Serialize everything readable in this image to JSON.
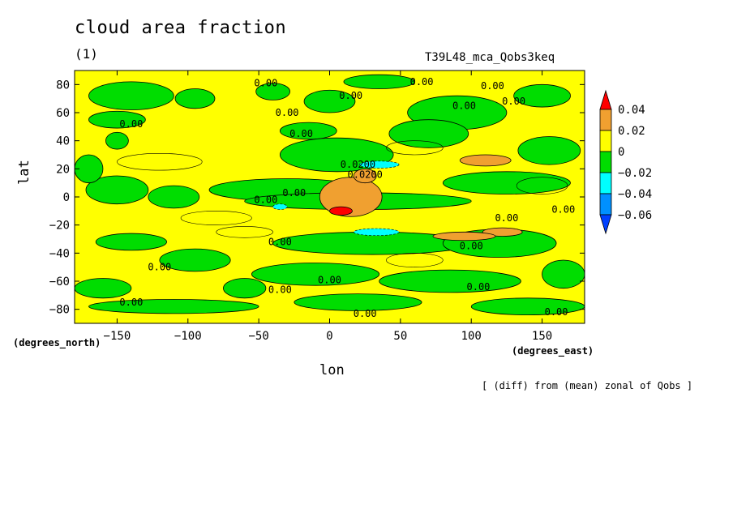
{
  "chart_data": {
    "type": "contour",
    "title": "cloud area fraction",
    "subtitle": "(1)",
    "experiment": "T39L48_mca_Qobs3keq",
    "footnote": "[ (diff) from (mean) zonal of Qobs ]",
    "xlabel": "lon",
    "ylabel": "lat",
    "x_units": "(degrees_east)",
    "y_units": "(degrees_north)",
    "xlim": [
      -180,
      180
    ],
    "ylim": [
      -90,
      90
    ],
    "x_ticks": [
      -150,
      -100,
      -50,
      0,
      50,
      100,
      150
    ],
    "y_ticks": [
      80,
      60,
      40,
      20,
      0,
      -20,
      -40,
      -60,
      -80
    ],
    "x_tick_labels": [
      "−150",
      "−100",
      "−50",
      "0",
      "50",
      "100",
      "150"
    ],
    "y_tick_labels": [
      "80",
      "60",
      "40",
      "20",
      "0",
      "−20",
      "−40",
      "−60",
      "−80"
    ],
    "colorbar": {
      "levels": [
        0.04,
        0.02,
        0,
        -0.02,
        -0.04,
        -0.06
      ],
      "labels": [
        "0.04",
        "0.02",
        "0",
        "−0.02",
        "−0.04",
        "−0.06"
      ],
      "colors": [
        "#ff0000",
        "#f0a030",
        "#ffff00",
        "#00dd00",
        "#00ffff",
        "#0090ff",
        "#0040ff"
      ]
    },
    "contour_labels": [
      {
        "text": "0.00",
        "lon": -45,
        "lat": 81
      },
      {
        "text": "0.00",
        "lon": 65,
        "lat": 82
      },
      {
        "text": "0.00",
        "lon": 15,
        "lat": 72
      },
      {
        "text": "0.00",
        "lon": 115,
        "lat": 79
      },
      {
        "text": "0.00",
        "lon": 95,
        "lat": 65
      },
      {
        "text": "0.00",
        "lon": 130,
        "lat": 68
      },
      {
        "text": "0.00",
        "lon": -140,
        "lat": 52
      },
      {
        "text": "0.00",
        "lon": -30,
        "lat": 60
      },
      {
        "text": "0.00",
        "lon": -20,
        "lat": 45
      },
      {
        "text": "0.0200",
        "lon": 20,
        "lat": 23
      },
      {
        "text": "0.0200",
        "lon": 25,
        "lat": 16
      },
      {
        "text": "0.00",
        "lon": -25,
        "lat": 3
      },
      {
        "text": "0.00",
        "lon": -45,
        "lat": -2
      },
      {
        "text": "0.00",
        "lon": 125,
        "lat": -15
      },
      {
        "text": "0.00",
        "lon": 165,
        "lat": -9
      },
      {
        "text": "0.00",
        "lon": -35,
        "lat": -32
      },
      {
        "text": "0.00",
        "lon": 100,
        "lat": -35
      },
      {
        "text": "0.00",
        "lon": -120,
        "lat": -50
      },
      {
        "text": "0.00",
        "lon": 0,
        "lat": -59
      },
      {
        "text": "0.00",
        "lon": -35,
        "lat": -66
      },
      {
        "text": "0.00",
        "lon": 105,
        "lat": -64
      },
      {
        "text": "0.00",
        "lon": -140,
        "lat": -75
      },
      {
        "text": "0.00",
        "lon": 25,
        "lat": -83
      },
      {
        "text": "0.00",
        "lon": 160,
        "lat": -82
      }
    ]
  }
}
